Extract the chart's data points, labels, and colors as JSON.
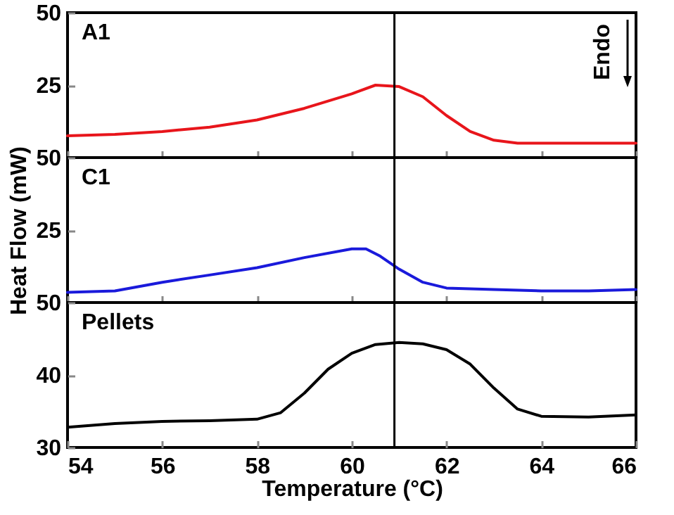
{
  "chart_data": [
    {
      "type": "line",
      "title": "A1",
      "annotations": [
        "Endo"
      ],
      "tick_labels": "y",
      "x": [
        54,
        55,
        56,
        57,
        58,
        59,
        60,
        60.5,
        61,
        61.5,
        62,
        62.5,
        63,
        63.5,
        64,
        65,
        66
      ],
      "series": [
        {
          "color": "#e8151b",
          "values": [
            7.5,
            8,
            9,
            10.5,
            13,
            17,
            22,
            25,
            24.5,
            21,
            14.5,
            9,
            6,
            5,
            5,
            5,
            5
          ]
        }
      ],
      "xlim": [
        54,
        66
      ],
      "xticks": [
        54,
        56,
        58,
        60,
        62,
        64,
        66
      ],
      "ylim": [
        0,
        50
      ],
      "yticks": [
        25,
        50
      ],
      "ref_lines": [
        {
          "axis": "x",
          "value": 60.9
        }
      ]
    },
    {
      "type": "line",
      "title": "C1",
      "ylabel": "Heat Flow (mW)",
      "tick_labels": "y",
      "x": [
        54,
        55,
        56,
        57,
        58,
        59,
        60,
        60.3,
        60.6,
        61,
        61.5,
        62,
        63,
        64,
        65,
        66
      ],
      "series": [
        {
          "color": "#1a1adb",
          "values": [
            3.5,
            4,
            7,
            9.5,
            12,
            15.5,
            18.5,
            18.5,
            16,
            11.5,
            7,
            5,
            4.5,
            4,
            4,
            4.5
          ]
        }
      ],
      "xlim": [
        54,
        66
      ],
      "xticks": [
        54,
        56,
        58,
        60,
        62,
        64,
        66
      ],
      "ylim": [
        0,
        50
      ],
      "yticks": [
        25,
        50
      ],
      "ref_lines": [
        {
          "axis": "x",
          "value": 60.9
        }
      ]
    },
    {
      "type": "line",
      "title": "Pellets",
      "xlabel": "Temperature (°C)",
      "x": [
        54,
        55,
        56,
        57,
        58,
        58.5,
        59,
        59.5,
        60,
        60.5,
        61,
        61.5,
        62,
        62.5,
        63,
        63.5,
        64,
        65,
        66
      ],
      "series": [
        {
          "color": "#000000",
          "values": [
            32.8,
            33.3,
            33.6,
            33.7,
            33.9,
            34.8,
            37.5,
            40.8,
            43,
            44.2,
            44.5,
            44.3,
            43.5,
            41.5,
            38.2,
            35.3,
            34.3,
            34.2,
            34.5
          ]
        }
      ],
      "xlim": [
        54,
        66
      ],
      "xticks": [
        54,
        56,
        58,
        60,
        62,
        64,
        66
      ],
      "ylim": [
        30,
        50
      ],
      "yticks": [
        30,
        40,
        50
      ],
      "ref_lines": [
        {
          "axis": "x",
          "value": 60.9
        }
      ]
    }
  ]
}
